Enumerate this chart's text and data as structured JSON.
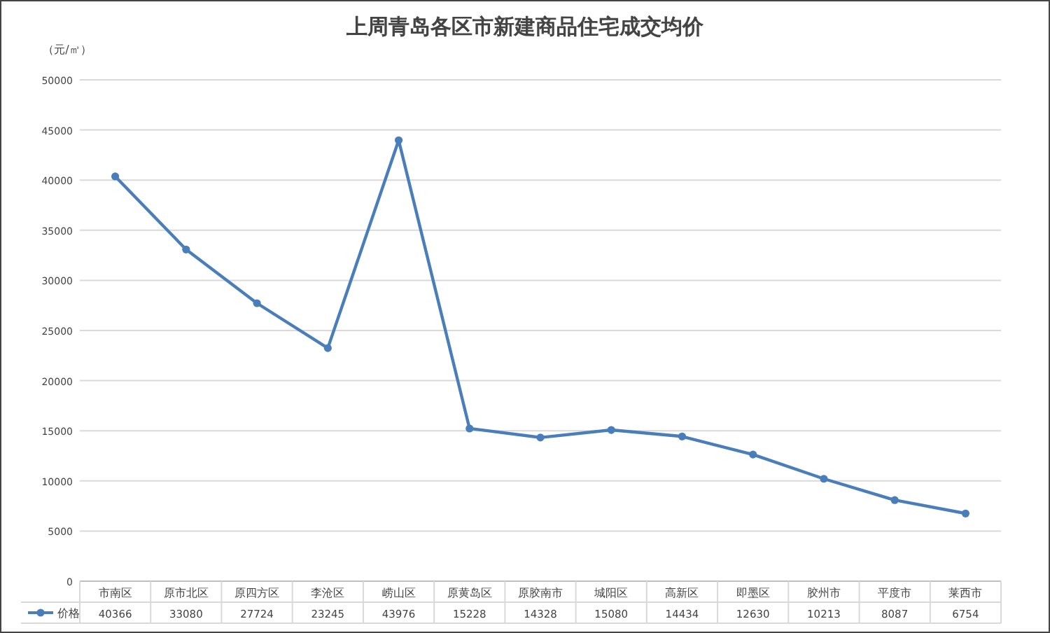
{
  "chart_data": {
    "type": "line",
    "title": "上周青岛各区市新建商品住宅成交均价",
    "ylabel": "（元/㎡）",
    "categories": [
      "市南区",
      "原市北区",
      "原四方区",
      "李沧区",
      "崂山区",
      "原黄岛区",
      "原胶南市",
      "城阳区",
      "高新区",
      "即墨区",
      "胶州市",
      "平度市",
      "莱西市"
    ],
    "series": [
      {
        "name": "价格",
        "color": "#4a7ebb",
        "values": [
          40366,
          33080,
          27724,
          23245,
          43976,
          15228,
          14328,
          15080,
          14434,
          12630,
          10213,
          8087,
          6754
        ]
      }
    ],
    "ylim": [
      0,
      50000
    ],
    "yticks": [
      0,
      5000,
      10000,
      15000,
      20000,
      25000,
      30000,
      35000,
      40000,
      45000,
      50000
    ],
    "grid": "y",
    "marker": "circle",
    "line_style": "solid",
    "legend": "bottom",
    "data_labels": true
  }
}
